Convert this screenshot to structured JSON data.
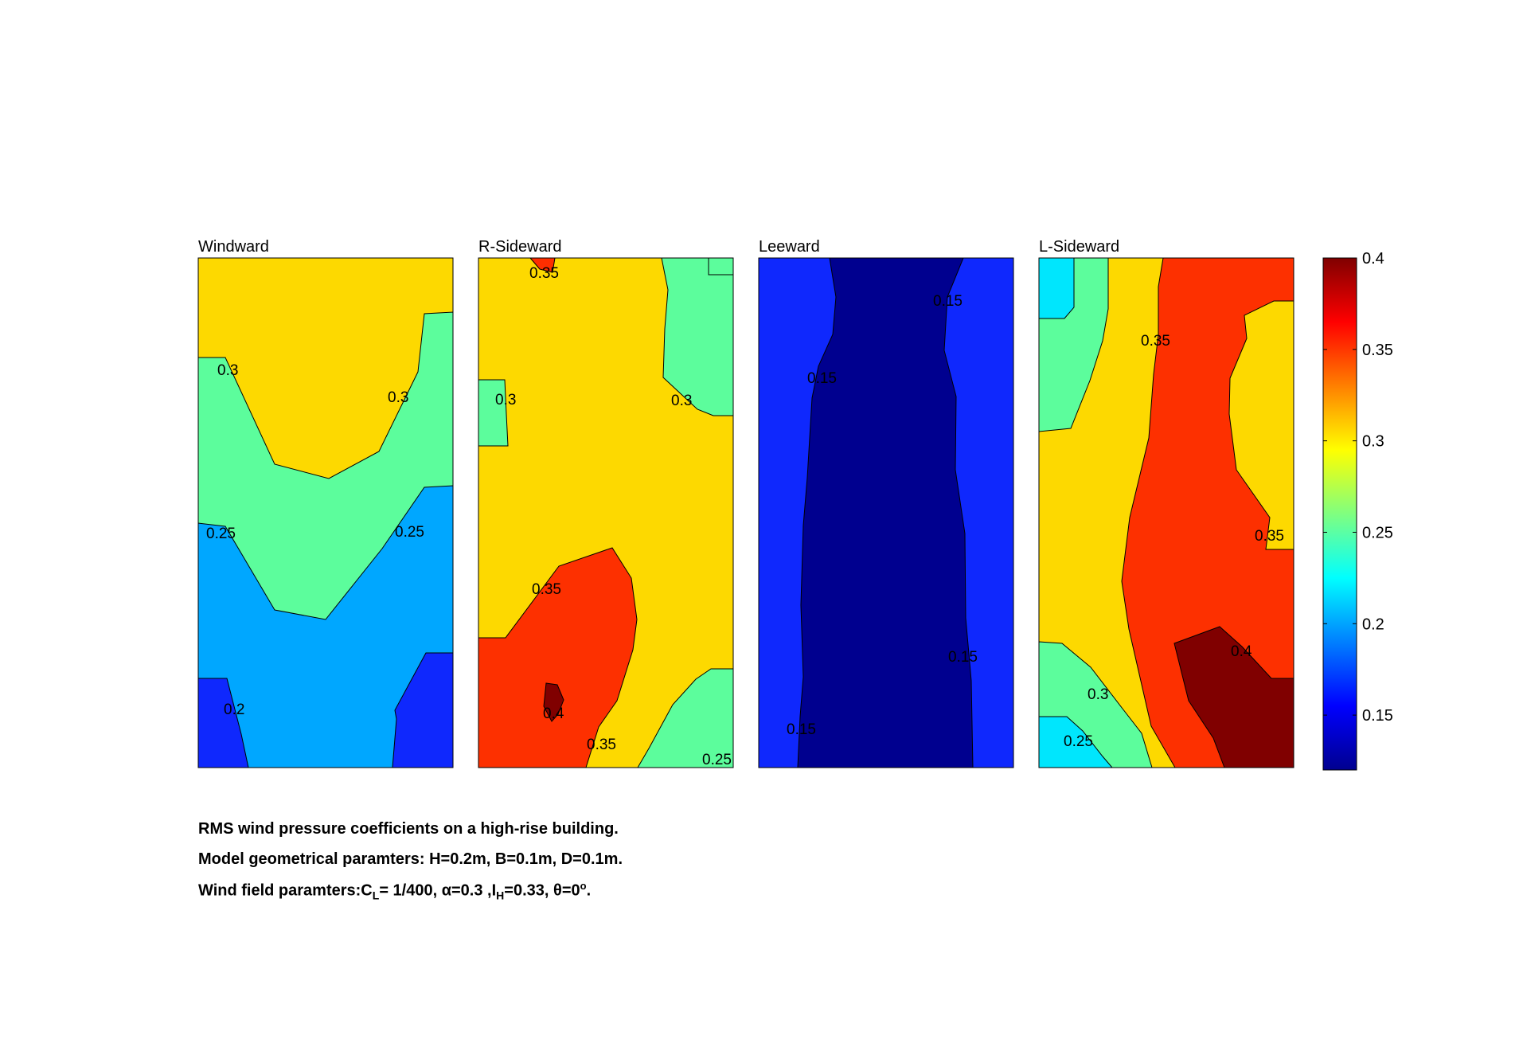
{
  "chart_data": {
    "type": "heatmap",
    "subtype": "filled-contour",
    "colormap": "jet",
    "clim": [
      0.12,
      0.4
    ],
    "colorbar": {
      "ticks": [
        0.4,
        0.35,
        0.3,
        0.25,
        0.2,
        0.15
      ]
    },
    "panels": [
      {
        "title": "Windward",
        "contour_labels": [
          "0.3",
          "0.3",
          "0.25",
          "0.25",
          "0.2"
        ]
      },
      {
        "title": "R-Sideward",
        "contour_labels": [
          "0.35",
          "0.3",
          "0.3",
          "0.35",
          "0.4",
          "0.35",
          "0.25"
        ]
      },
      {
        "title": "Leeward",
        "contour_labels": [
          "0.15",
          "0.15",
          "0.15",
          "0.15"
        ]
      },
      {
        "title": "L-Sideward",
        "contour_labels": [
          "0.35",
          "0.35",
          "0.4",
          "0.3",
          "0.25"
        ]
      }
    ]
  },
  "caption": {
    "line1": "RMS wind pressure coefficients on a high-rise building.",
    "line2": "Model geometrical paramters: H=0.2m, B=0.1m, D=0.1m.",
    "line3": {
      "prefix": "Wind field paramters:C",
      "sub1": "L",
      "mid1": "= 1/400, α=0.3 ,I",
      "sub2": "H",
      "mid2": "=0.33, θ=0",
      "sup": "o",
      "suffix": "."
    }
  }
}
